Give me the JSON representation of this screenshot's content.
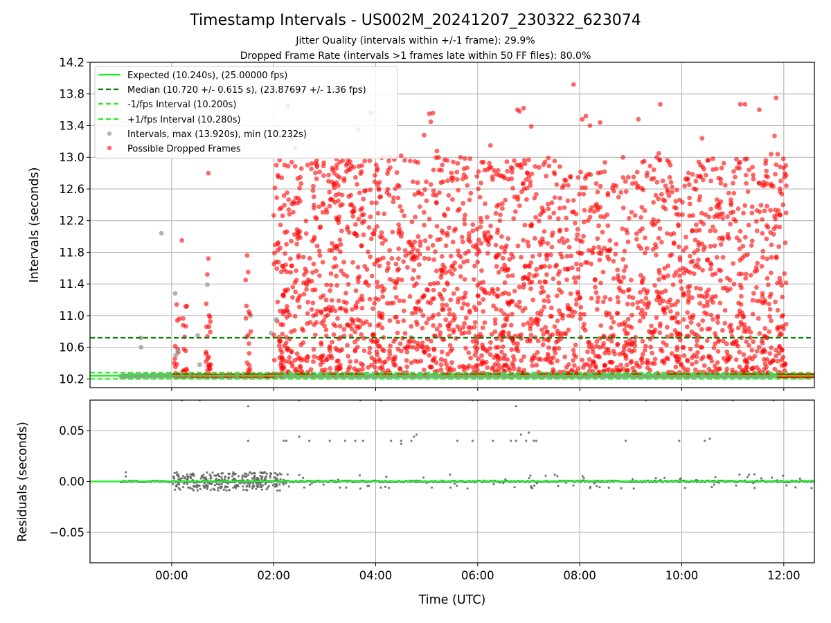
{
  "title": "Timestamp Intervals - US002M_20241207_230322_623074",
  "subtitle_lines": [
    "Jitter Quality (intervals within +/-1 frame): 29.9%",
    "Dropped Frame Rate (intervals >1 frames late within 50 FF files): 80.0%"
  ],
  "colors": {
    "expected": "#22ee22",
    "median": "#008000",
    "fps_band": "#22ee22",
    "intervals": "#999999",
    "dropped": "#ff0000",
    "residuals": "#666666",
    "grid": "#b0b0b0"
  },
  "chart_data": [
    {
      "type": "scatter",
      "id": "intervals",
      "ylabel": "Intervals (seconds)",
      "xlabel": "",
      "x_unit": "hours relative to 00:00 UTC on 2024-12-08",
      "xlim": [
        -1.6,
        12.6
      ],
      "ylim": [
        10.09,
        14.2
      ],
      "yticks": [
        10.2,
        10.6,
        11.0,
        11.4,
        11.8,
        12.2,
        12.6,
        13.0,
        13.4,
        13.8,
        14.2
      ],
      "ytick_labels": [
        "10.2",
        "10.6",
        "11.0",
        "11.4",
        "11.8",
        "12.2",
        "12.6",
        "13.0",
        "13.4",
        "13.8",
        "14.2"
      ],
      "xticks": [
        0,
        2,
        4,
        6,
        8,
        10,
        12
      ],
      "grid": true,
      "legend_position": "top-left",
      "lines": [
        {
          "name": "Expected (10.240s), (25.00000 fps)",
          "y": 10.24,
          "style": "solid",
          "color": "#22ee22"
        },
        {
          "name": "Median (10.720 +/- 0.615 s), (23.87697 +/- 1.36 fps)",
          "y": 10.72,
          "style": "dashed",
          "color": "#008000"
        },
        {
          "name": "-1/fps Interval (10.200s)",
          "y": 10.2,
          "style": "dashed",
          "color": "#22ee22"
        },
        {
          "name": "+1/fps Interval (10.280s)",
          "y": 10.28,
          "style": "dashed",
          "color": "#22ee22"
        }
      ],
      "series": [
        {
          "name": "Intervals, max (13.920s), min (10.232s)",
          "color": "#999999",
          "points": [
            [
              -0.2,
              12.04
            ],
            [
              0.07,
              11.28
            ],
            [
              0.08,
              10.5
            ],
            [
              0.55,
              10.38
            ],
            [
              0.51,
              10.75
            ],
            [
              0.7,
              11.39
            ],
            [
              -0.6,
              10.72
            ],
            [
              -0.6,
              10.6
            ],
            [
              1.95,
              10.78
            ],
            [
              2.05,
              10.95
            ],
            [
              1.55,
              11.0
            ],
            [
              0.12,
              10.55
            ]
          ]
        },
        {
          "name": "Possible Dropped Frames",
          "color": "#ff0000",
          "points": [
            [
              0.1,
              11.14
            ],
            [
              0.15,
              10.96
            ],
            [
              0.2,
              11.95
            ],
            [
              0.05,
              10.4
            ],
            [
              0.72,
              12.8
            ],
            [
              0.72,
              11.72
            ],
            [
              0.7,
              11.52
            ],
            [
              0.68,
              11.15
            ],
            [
              0.75,
              10.98
            ],
            [
              1.48,
              11.76
            ],
            [
              1.5,
              11.55
            ],
            [
              1.45,
              11.45
            ],
            [
              1.53,
              11.02
            ],
            [
              2.28,
              13.64
            ],
            [
              2.35,
              13.24
            ],
            [
              2.42,
              13.12
            ],
            [
              2.85,
              12.9
            ],
            [
              3.65,
              13.35
            ],
            [
              3.9,
              13.56
            ],
            [
              4.28,
              13.0
            ],
            [
              4.5,
              13.02
            ],
            [
              4.95,
              13.28
            ],
            [
              5.05,
              13.55
            ],
            [
              5.12,
              13.56
            ],
            [
              5.08,
              13.45
            ],
            [
              5.2,
              13.08
            ],
            [
              6.25,
              13.15
            ],
            [
              6.78,
              13.6
            ],
            [
              6.82,
              13.58
            ],
            [
              6.9,
              13.62
            ],
            [
              7.05,
              13.39
            ],
            [
              7.88,
              13.92
            ],
            [
              8.05,
              13.48
            ],
            [
              8.12,
              13.52
            ],
            [
              8.2,
              13.4
            ],
            [
              8.4,
              13.44
            ],
            [
              9.15,
              13.48
            ],
            [
              9.58,
              13.67
            ],
            [
              9.55,
              13.05
            ],
            [
              10.4,
              13.24
            ],
            [
              11.15,
              13.67
            ],
            [
              11.24,
              13.67
            ],
            [
              11.52,
              13.6
            ],
            [
              11.85,
              13.75
            ],
            [
              11.82,
              13.27
            ],
            [
              11.88,
              13.04
            ],
            [
              11.75,
              13.04
            ],
            [
              12.05,
              12.64
            ]
          ]
        }
      ],
      "dense_cloud": {
        "series": "Possible Dropped Frames",
        "note": "approximately 2500 scattered points between 02:00 and 12:05 UTC",
        "x_range": [
          2.0,
          12.05
        ],
        "y_range": [
          10.25,
          13.0
        ],
        "approx_count": 2500
      },
      "baseline_points": {
        "series": "Possible Dropped Frames",
        "y": 10.24,
        "x_segments": [
          [
            -1.0,
            12.6
          ]
        ]
      }
    },
    {
      "type": "scatter",
      "id": "residuals",
      "ylabel": "Residuals (seconds)",
      "xlabel": "Time (UTC)",
      "x_unit": "hours relative to 00:00 UTC on 2024-12-08",
      "xlim": [
        -1.6,
        12.6
      ],
      "ylim": [
        -0.08,
        0.08
      ],
      "yticks": [
        -0.05,
        0.0,
        0.05
      ],
      "ytick_labels": [
        "−0.05",
        "0.00",
        "0.05"
      ],
      "xticks": [
        0,
        2,
        4,
        6,
        8,
        10,
        12
      ],
      "xtick_labels": [
        "00:00",
        "02:00",
        "04:00",
        "06:00",
        "08:00",
        "10:00",
        "12:00"
      ],
      "grid": true,
      "zero_line": {
        "y": 0.0,
        "color": "#22ee22"
      },
      "series": [
        {
          "name": "Residuals",
          "color": "#666666",
          "points": [
            [
              -0.9,
              0.009
            ],
            [
              -0.9,
              0.005
            ],
            [
              1.5,
              0.074
            ],
            [
              1.5,
              0.04
            ],
            [
              2.2,
              0.04
            ],
            [
              2.25,
              0.04
            ],
            [
              2.5,
              0.044
            ],
            [
              2.7,
              0.04
            ],
            [
              3.1,
              0.04
            ],
            [
              3.4,
              0.04
            ],
            [
              3.6,
              0.04
            ],
            [
              3.75,
              0.04
            ],
            [
              4.3,
              0.04
            ],
            [
              4.5,
              0.037
            ],
            [
              4.5,
              0.04
            ],
            [
              4.7,
              0.04
            ],
            [
              4.75,
              0.044
            ],
            [
              4.8,
              0.046
            ],
            [
              5.6,
              0.04
            ],
            [
              5.9,
              0.04
            ],
            [
              6.3,
              0.04
            ],
            [
              6.65,
              0.04
            ],
            [
              6.75,
              0.04
            ],
            [
              6.85,
              0.046
            ],
            [
              6.95,
              0.04
            ],
            [
              7.0,
              0.048
            ],
            [
              7.1,
              0.04
            ],
            [
              7.15,
              0.04
            ],
            [
              8.9,
              0.04
            ],
            [
              9.95,
              0.04
            ],
            [
              10.45,
              0.04
            ],
            [
              10.55,
              0.042
            ],
            [
              6.75,
              0.074
            ],
            [
              0.2,
              0.08
            ],
            [
              0.55,
              0.08
            ],
            [
              2.5,
              0.08
            ],
            [
              3.7,
              0.08
            ],
            [
              4.1,
              0.08
            ],
            [
              5.9,
              0.08
            ],
            [
              6.0,
              0.08
            ],
            [
              8.2,
              0.08
            ],
            [
              9.3,
              0.08
            ],
            [
              10.1,
              0.08
            ],
            [
              11.0,
              0.08
            ],
            [
              11.8,
              0.08
            ],
            [
              0.1,
              -0.005
            ],
            [
              0.5,
              -0.006
            ],
            [
              1.3,
              -0.004
            ],
            [
              2.3,
              -0.005
            ],
            [
              2.6,
              -0.006
            ],
            [
              3.3,
              -0.006
            ],
            [
              3.7,
              -0.007
            ],
            [
              4.1,
              -0.006
            ],
            [
              5.1,
              -0.006
            ],
            [
              5.8,
              -0.007
            ],
            [
              12.65,
              -0.008
            ]
          ]
        }
      ],
      "dense_cloud": {
        "series": "Residuals",
        "note": "dense cluster of small residuals near zero between 00:00 and 02:10 UTC",
        "x_range": [
          0.0,
          2.15
        ],
        "y_range": [
          -0.009,
          0.009
        ],
        "approx_count": 300
      }
    }
  ]
}
